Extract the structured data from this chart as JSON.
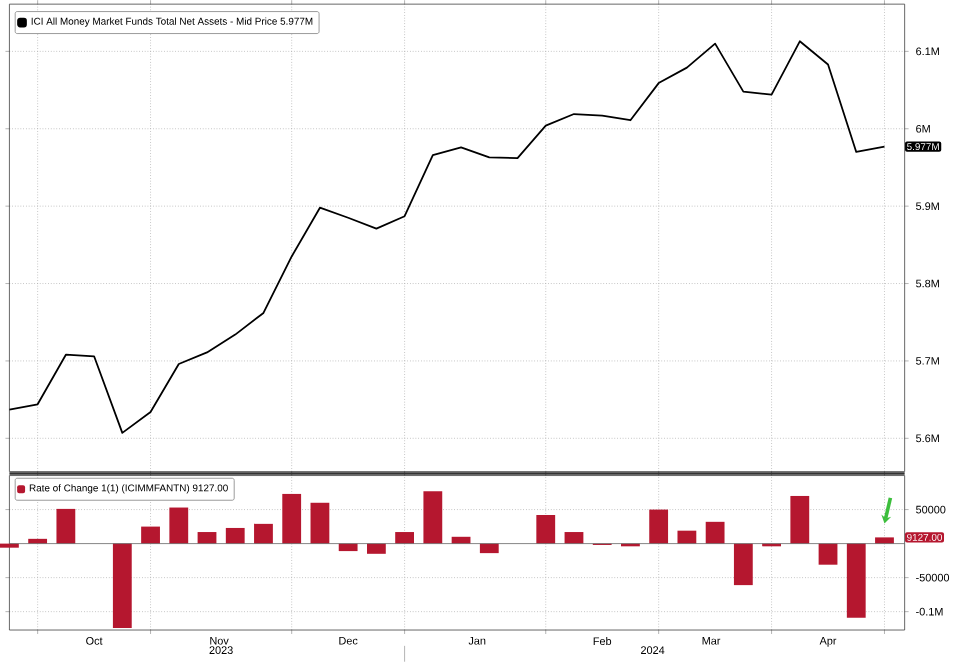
{
  "chart_data": [
    {
      "type": "line",
      "x": [
        "2023-09-27",
        "2023-10-04",
        "2023-10-11",
        "2023-10-18",
        "2023-10-25",
        "2023-11-01",
        "2023-11-08",
        "2023-11-15",
        "2023-11-22",
        "2023-11-29",
        "2023-12-06",
        "2023-12-13",
        "2023-12-20",
        "2023-12-27",
        "2024-01-03",
        "2024-01-10",
        "2024-01-17",
        "2024-01-24",
        "2024-01-31",
        "2024-02-07",
        "2024-02-14",
        "2024-02-21",
        "2024-02-28",
        "2024-03-06",
        "2024-03-13",
        "2024-03-20",
        "2024-03-27",
        "2024-04-03",
        "2024-04-10",
        "2024-04-17",
        "2024-04-24",
        "2024-05-01"
      ],
      "series": [
        {
          "name": "ICI All Money Market Funds Total Net Assets - Mid Price 5.977M",
          "color": "#000000",
          "values": [
            5.637,
            5.644,
            5.708,
            5.706,
            5.607,
            5.634,
            5.696,
            5.711,
            5.734,
            5.762,
            5.835,
            5.898,
            5.885,
            5.871,
            5.887,
            5.966,
            5.976,
            5.963,
            5.962,
            6.004,
            6.019,
            6.017,
            6.011,
            6.059,
            6.079,
            6.11,
            6.048,
            6.044,
            6.113,
            6.083,
            5.97,
            5.977
          ]
        }
      ],
      "xlim": [
        "2023-09-27",
        "2024-05-06"
      ],
      "xticks": [
        {
          "value": "2023-10-04",
          "label": null
        },
        {
          "value": "2023-11-01",
          "label": null
        },
        {
          "value": "2023-12-06",
          "label": null
        },
        {
          "value": "2024-01-03",
          "label": null
        },
        {
          "value": "2024-02-07",
          "label": null
        },
        {
          "value": "2024-03-06",
          "label": null
        },
        {
          "value": "2024-04-03",
          "label": null
        },
        {
          "value": "2024-05-01",
          "label": null
        }
      ],
      "ylim": [
        5.557,
        6.161
      ],
      "yticks": [
        {
          "value": 5.6,
          "label": "5.6M"
        },
        {
          "value": 5.7,
          "label": "5.7M"
        },
        {
          "value": 5.8,
          "label": "5.8M"
        },
        {
          "value": 5.9,
          "label": "5.9M"
        },
        {
          "value": 6.0,
          "label": "6M"
        },
        {
          "value": 6.1,
          "label": "6.1M"
        }
      ],
      "tick_labels": "y",
      "grid": true,
      "legend": "top left",
      "annotations": [
        {
          "text": "5.977M",
          "x": "2024-05-01",
          "y": 5.977
        }
      ]
    },
    {
      "type": "bar",
      "x": [
        "2023-09-27",
        "2023-10-04",
        "2023-10-11",
        "2023-10-18",
        "2023-10-25",
        "2023-11-01",
        "2023-11-08",
        "2023-11-15",
        "2023-11-22",
        "2023-11-29",
        "2023-12-06",
        "2023-12-13",
        "2023-12-20",
        "2023-12-27",
        "2024-01-03",
        "2024-01-10",
        "2024-01-17",
        "2024-01-24",
        "2024-01-31",
        "2024-02-07",
        "2024-02-14",
        "2024-02-21",
        "2024-02-28",
        "2024-03-06",
        "2024-03-13",
        "2024-03-20",
        "2024-03-27",
        "2024-04-03",
        "2024-04-10",
        "2024-04-17",
        "2024-04-24",
        "2024-05-01"
      ],
      "series": [
        {
          "name": "Rate of Change 1(1) (ICIMMFANTN) 9127.00",
          "color": "#b5172f",
          "values": [
            -6000,
            7000,
            51000,
            null,
            -124000,
            25000,
            53000,
            17000,
            23000,
            29000,
            73000,
            60000,
            -11000,
            -15000,
            17000,
            77000,
            10000,
            -14000,
            null,
            42000,
            17000,
            -2000,
            -4000,
            50000,
            19000,
            32000,
            -61000,
            -4000,
            70000,
            -31000,
            -109000,
            9127
          ]
        }
      ],
      "xlim": [
        "2023-09-27",
        "2024-05-06"
      ],
      "xticks": [
        {
          "value": "2023-10-04",
          "label": null
        },
        {
          "value": "2023-11-01",
          "label": null
        },
        {
          "value": "2023-12-06",
          "label": null
        },
        {
          "value": "2024-01-03",
          "label": null
        },
        {
          "value": "2024-02-07",
          "label": null
        },
        {
          "value": "2024-03-06",
          "label": null
        },
        {
          "value": "2024-04-03",
          "label": null
        },
        {
          "value": "2024-05-01",
          "label": null
        },
        {
          "value": "2023-10-18",
          "label": "Oct"
        },
        {
          "value": "2023-11-18",
          "label": "Nov"
        },
        {
          "value": "2023-12-20",
          "label": "Dec"
        },
        {
          "value": "2024-01-21",
          "label": "Jan"
        },
        {
          "value": "2024-02-21",
          "label": "Feb"
        },
        {
          "value": "2024-03-19",
          "label": "Mar"
        },
        {
          "value": "2024-04-17",
          "label": "Apr"
        }
      ],
      "ylim": [
        -127000,
        100000
      ],
      "yticks": [
        {
          "value": -100000,
          "label": "-0.1M"
        },
        {
          "value": -50000,
          "label": "-50000"
        },
        {
          "value": 50000,
          "label": "50000"
        }
      ],
      "grid": true,
      "legend": "top left",
      "annotations": [
        {
          "text": "9127.00",
          "x": "2024-05-01",
          "y": 9127
        },
        "2023",
        "2024"
      ]
    }
  ]
}
